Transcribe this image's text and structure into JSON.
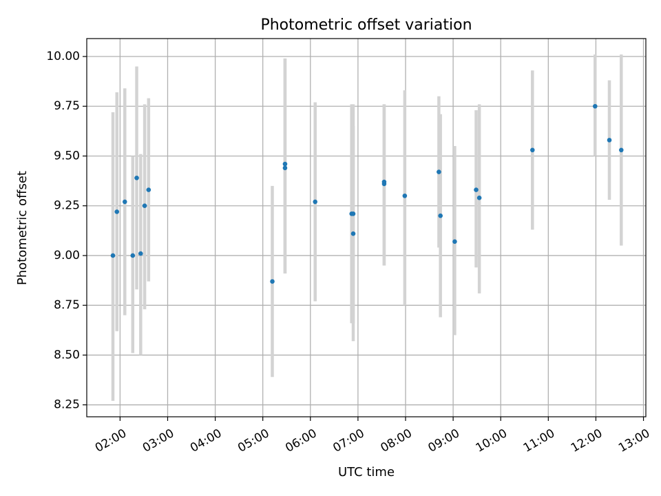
{
  "chart_data": {
    "type": "scatter",
    "title": "Photometric offset variation",
    "xlabel": "UTC time",
    "ylabel": "Photometric offset",
    "xlim": [
      "01:18",
      "13:03"
    ],
    "ylim": [
      8.19,
      10.09
    ],
    "x_ticks": [
      "02:00",
      "03:00",
      "04:00",
      "05:00",
      "06:00",
      "07:00",
      "08:00",
      "09:00",
      "10:00",
      "11:00",
      "12:00",
      "13:00"
    ],
    "y_ticks": [
      "8.25",
      "8.50",
      "8.75",
      "9.00",
      "9.25",
      "9.50",
      "9.75",
      "10.00"
    ],
    "grid": true,
    "marker_color": "#1f77b4",
    "errorbar_color": "#d3d3d3",
    "points": [
      {
        "t": "01:51",
        "y": 9.0,
        "lo": 8.27,
        "hi": 9.72
      },
      {
        "t": "01:56",
        "y": 9.22,
        "lo": 8.62,
        "hi": 9.82
      },
      {
        "t": "02:06",
        "y": 9.27,
        "lo": 8.7,
        "hi": 9.84
      },
      {
        "t": "02:16",
        "y": 9.0,
        "lo": 8.51,
        "hi": 9.5
      },
      {
        "t": "02:21",
        "y": 9.39,
        "lo": 8.83,
        "hi": 9.95
      },
      {
        "t": "02:26",
        "y": 9.01,
        "lo": 8.5,
        "hi": 9.51
      },
      {
        "t": "02:31",
        "y": 9.25,
        "lo": 8.73,
        "hi": 9.76
      },
      {
        "t": "02:36",
        "y": 9.33,
        "lo": 8.87,
        "hi": 9.79
      },
      {
        "t": "05:12",
        "y": 8.87,
        "lo": 8.39,
        "hi": 9.35
      },
      {
        "t": "05:28",
        "y": 9.46,
        "lo": 8.91,
        "hi": 9.99
      },
      {
        "t": "05:28",
        "y": 9.44,
        "lo": 8.91,
        "hi": 9.99
      },
      {
        "t": "06:06",
        "y": 9.27,
        "lo": 8.77,
        "hi": 9.77
      },
      {
        "t": "06:52",
        "y": 9.21,
        "lo": 8.66,
        "hi": 9.76
      },
      {
        "t": "06:54",
        "y": 9.21,
        "lo": 8.66,
        "hi": 9.76
      },
      {
        "t": "06:54",
        "y": 9.11,
        "lo": 8.57,
        "hi": 9.65
      },
      {
        "t": "07:33",
        "y": 9.37,
        "lo": 8.95,
        "hi": 9.76
      },
      {
        "t": "07:33",
        "y": 9.36,
        "lo": 8.95,
        "hi": 9.76
      },
      {
        "t": "07:59",
        "y": 9.3,
        "lo": 8.75,
        "hi": 9.83
      },
      {
        "t": "08:42",
        "y": 9.42,
        "lo": 9.04,
        "hi": 9.8
      },
      {
        "t": "08:44",
        "y": 9.2,
        "lo": 8.69,
        "hi": 9.71
      },
      {
        "t": "09:02",
        "y": 9.07,
        "lo": 8.6,
        "hi": 9.55
      },
      {
        "t": "09:29",
        "y": 9.33,
        "lo": 8.94,
        "hi": 9.73
      },
      {
        "t": "09:33",
        "y": 9.29,
        "lo": 8.81,
        "hi": 9.76
      },
      {
        "t": "10:40",
        "y": 9.53,
        "lo": 9.13,
        "hi": 9.93
      },
      {
        "t": "11:59",
        "y": 9.75,
        "lo": 9.5,
        "hi": 10.01
      },
      {
        "t": "12:17",
        "y": 9.58,
        "lo": 9.28,
        "hi": 9.88
      },
      {
        "t": "12:32",
        "y": 9.53,
        "lo": 9.05,
        "hi": 10.01
      }
    ]
  }
}
